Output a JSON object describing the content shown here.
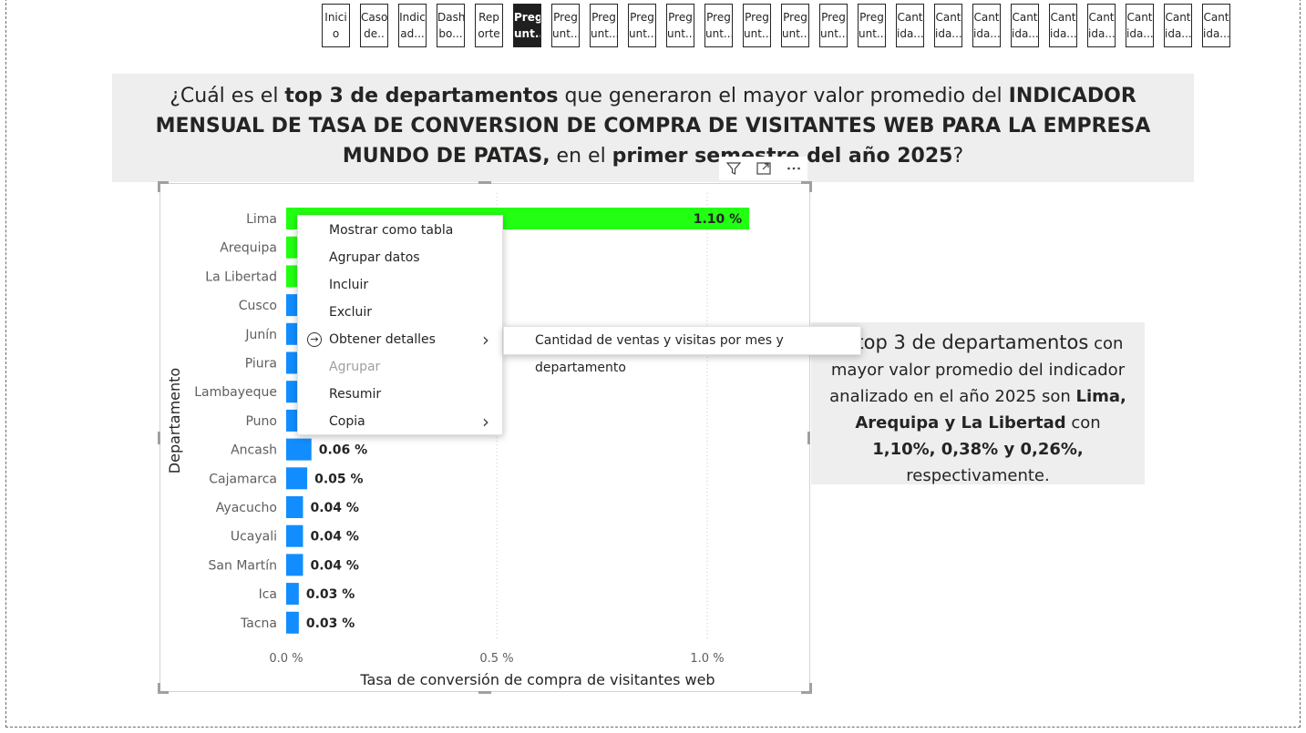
{
  "nav": {
    "tabs": [
      {
        "line1": "Inici",
        "line2": "o",
        "active": false
      },
      {
        "line1": "Caso",
        "line2": "de..",
        "active": false
      },
      {
        "line1": "Indic",
        "line2": "ad...",
        "active": false
      },
      {
        "line1": "Dash",
        "line2": "bo...",
        "active": false
      },
      {
        "line1": "Rep",
        "line2": "orte",
        "active": false
      },
      {
        "line1": "Preg",
        "line2": "unt...",
        "active": true
      },
      {
        "line1": "Preg",
        "line2": "unt...",
        "active": false
      },
      {
        "line1": "Preg",
        "line2": "unt...",
        "active": false
      },
      {
        "line1": "Preg",
        "line2": "unt...",
        "active": false
      },
      {
        "line1": "Preg",
        "line2": "unt...",
        "active": false
      },
      {
        "line1": "Preg",
        "line2": "unt...",
        "active": false
      },
      {
        "line1": "Preg",
        "line2": "unt...",
        "active": false
      },
      {
        "line1": "Preg",
        "line2": "unt...",
        "active": false
      },
      {
        "line1": "Preg",
        "line2": "unt...",
        "active": false
      },
      {
        "line1": "Preg",
        "line2": "unt...",
        "active": false
      },
      {
        "line1": "Cant",
        "line2": "ida...",
        "active": false
      },
      {
        "line1": "Cant",
        "line2": "ida...",
        "active": false
      },
      {
        "line1": "Cant",
        "line2": "ida...",
        "active": false
      },
      {
        "line1": "Cant",
        "line2": "ida...",
        "active": false
      },
      {
        "line1": "Cant",
        "line2": "ida...",
        "active": false
      },
      {
        "line1": "Cant",
        "line2": "ida...",
        "active": false
      },
      {
        "line1": "Cant",
        "line2": "ida...",
        "active": false
      },
      {
        "line1": "Cant",
        "line2": "ida...",
        "active": false
      },
      {
        "line1": "Cant",
        "line2": "ida...",
        "active": false
      }
    ]
  },
  "question": {
    "t1": "¿Cuál es el ",
    "b1": "top 3 de departamentos",
    "t2": " que generaron el mayor valor promedio del ",
    "b2": "INDICADOR MENSUAL DE TASA DE CONVERSION DE COMPRA DE VISITANTES WEB PARA LA EMPRESA MUNDO DE PATAS,",
    "t3": " en el ",
    "b3": "primer semestre del año 2025",
    "t4": "?"
  },
  "visual_header": {
    "filter_icon": "filter-icon",
    "focus_icon": "focus-mode-icon",
    "more_icon": "more-options-icon"
  },
  "chart_data": {
    "type": "bar",
    "orientation": "horizontal",
    "ylabel": "Departamento",
    "xlabel": "Tasa de conversión de compra de visitantes web",
    "xlim": [
      0,
      1.25
    ],
    "xticks": [
      "0.0 %",
      "0.5 %",
      "1.0 %"
    ],
    "xtick_values": [
      0,
      0.5,
      1.0
    ],
    "grid": "vertical dotted",
    "categories": [
      "Lima",
      "Arequipa",
      "La Libertad",
      "Cusco",
      "Junín",
      "Piura",
      "Lambayeque",
      "Puno",
      "Ancash",
      "Cajamarca",
      "Ayacucho",
      "Ucayali",
      "San Martín",
      "Ica",
      "Tacna"
    ],
    "values": [
      1.1,
      0.38,
      0.26,
      0.14,
      0.12,
      0.1,
      0.09,
      0.08,
      0.06,
      0.05,
      0.04,
      0.04,
      0.04,
      0.03,
      0.03
    ],
    "labels": [
      "1.10 %",
      "",
      "",
      "",
      "",
      "",
      "",
      "",
      "0.06 %",
      "0.05 %",
      "0.04 %",
      "0.04 %",
      "0.04 %",
      "0.03 %",
      "0.03 %"
    ],
    "colors": [
      "#22ff12",
      "#22ff12",
      "#22ff12",
      "#118dff",
      "#118dff",
      "#118dff",
      "#118dff",
      "#118dff",
      "#118dff",
      "#118dff",
      "#118dff",
      "#118dff",
      "#118dff",
      "#118dff",
      "#118dff"
    ]
  },
  "context_menu": {
    "items": [
      {
        "label": "Mostrar como tabla",
        "disabled": false,
        "submenu": false
      },
      {
        "label": "Agrupar datos",
        "disabled": false,
        "submenu": false
      },
      {
        "label": "Incluir",
        "disabled": false,
        "submenu": false
      },
      {
        "label": "Excluir",
        "disabled": false,
        "submenu": false
      },
      {
        "label": "Obtener detalles",
        "disabled": false,
        "submenu": true
      },
      {
        "label": "Agrupar",
        "disabled": true,
        "submenu": false
      },
      {
        "label": "Resumir",
        "disabled": false,
        "submenu": false
      },
      {
        "label": "Copia",
        "disabled": false,
        "submenu": true
      }
    ],
    "submenu_item": "Cantidad de ventas y visitas por mes y departamento"
  },
  "answer": {
    "b0": "El top 3 de departamentos",
    "t1": " con mayor valor promedio del indicador analizado en el año 2025 son ",
    "b1": "Lima, Arequipa y La Libertad",
    "t2": " con ",
    "b2": "1,10%, 0,38% y 0,26%,",
    "t3": " respectivamente."
  }
}
